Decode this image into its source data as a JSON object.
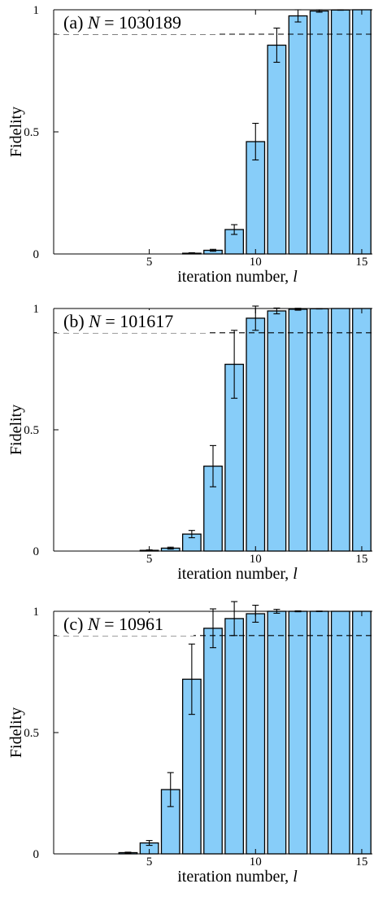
{
  "chart_data": [
    {
      "type": "bar",
      "panel_label": "(a) N = 1030189",
      "label_letter": "(a)",
      "label_var": "N",
      "label_value": "= 1030189",
      "xlabel": "iteration number, ",
      "xlabel_var": "l",
      "ylabel": "Fidelity",
      "x": [
        1,
        2,
        3,
        4,
        5,
        6,
        7,
        8,
        9,
        10,
        11,
        12,
        13,
        14,
        15
      ],
      "values": [
        0.0,
        0.0,
        0.0,
        0.0,
        0.0,
        0.0,
        0.003,
        0.015,
        0.1,
        0.46,
        0.855,
        0.975,
        0.995,
        0.999,
        1.0
      ],
      "errors": [
        0,
        0,
        0,
        0,
        0,
        0,
        0.002,
        0.004,
        0.02,
        0.075,
        0.07,
        0.025,
        0.005,
        0.001,
        0
      ],
      "xlim": [
        0.5,
        15.5
      ],
      "ylim": [
        0,
        1
      ],
      "xticks": [
        5,
        10,
        15
      ],
      "yticks": [
        0,
        0.5,
        1
      ],
      "ytick_labels": [
        "0",
        "0.5",
        "1"
      ],
      "threshold": 0.9,
      "bar_color": "#87cdf9"
    },
    {
      "type": "bar",
      "panel_label": "(b) N = 101617",
      "label_letter": "(b)",
      "label_var": "N",
      "label_value": "= 101617",
      "xlabel": "iteration number, ",
      "xlabel_var": "l",
      "ylabel": "Fidelity",
      "x": [
        1,
        2,
        3,
        4,
        5,
        6,
        7,
        8,
        9,
        10,
        11,
        12,
        13,
        14,
        15
      ],
      "values": [
        0.0,
        0.0,
        0.0,
        0.0,
        0.003,
        0.012,
        0.07,
        0.35,
        0.77,
        0.96,
        0.99,
        0.997,
        0.999,
        1.0,
        1.0
      ],
      "errors": [
        0,
        0,
        0,
        0,
        0.002,
        0.004,
        0.015,
        0.085,
        0.14,
        0.05,
        0.012,
        0.004,
        0.001,
        0,
        0
      ],
      "xlim": [
        0.5,
        15.5
      ],
      "ylim": [
        0,
        1
      ],
      "xticks": [
        5,
        10,
        15
      ],
      "yticks": [
        0,
        0.5,
        1
      ],
      "ytick_labels": [
        "0",
        "0.5",
        "1"
      ],
      "threshold": 0.9,
      "bar_color": "#87cdf9"
    },
    {
      "type": "bar",
      "panel_label": "(c) N = 10961",
      "label_letter": "(c)",
      "label_var": "N",
      "label_value": "= 10961",
      "xlabel": "iteration number, ",
      "xlabel_var": "l",
      "ylabel": "Fidelity",
      "x": [
        1,
        2,
        3,
        4,
        5,
        6,
        7,
        8,
        9,
        10,
        11,
        12,
        13,
        14,
        15
      ],
      "values": [
        0.0,
        0.0,
        0.0,
        0.005,
        0.045,
        0.265,
        0.72,
        0.93,
        0.97,
        0.99,
        1.0,
        1.0,
        1.0,
        1.0,
        1.0
      ],
      "errors": [
        0,
        0,
        0,
        0.002,
        0.01,
        0.07,
        0.145,
        0.08,
        0.07,
        0.035,
        0.008,
        0.002,
        0.001,
        0,
        0
      ],
      "xlim": [
        0.5,
        15.5
      ],
      "ylim": [
        0,
        1
      ],
      "xticks": [
        5,
        10,
        15
      ],
      "yticks": [
        0,
        0.5,
        1
      ],
      "ytick_labels": [
        "0",
        "0.5",
        "1"
      ],
      "threshold": 0.9,
      "bar_color": "#87cdf9"
    }
  ]
}
